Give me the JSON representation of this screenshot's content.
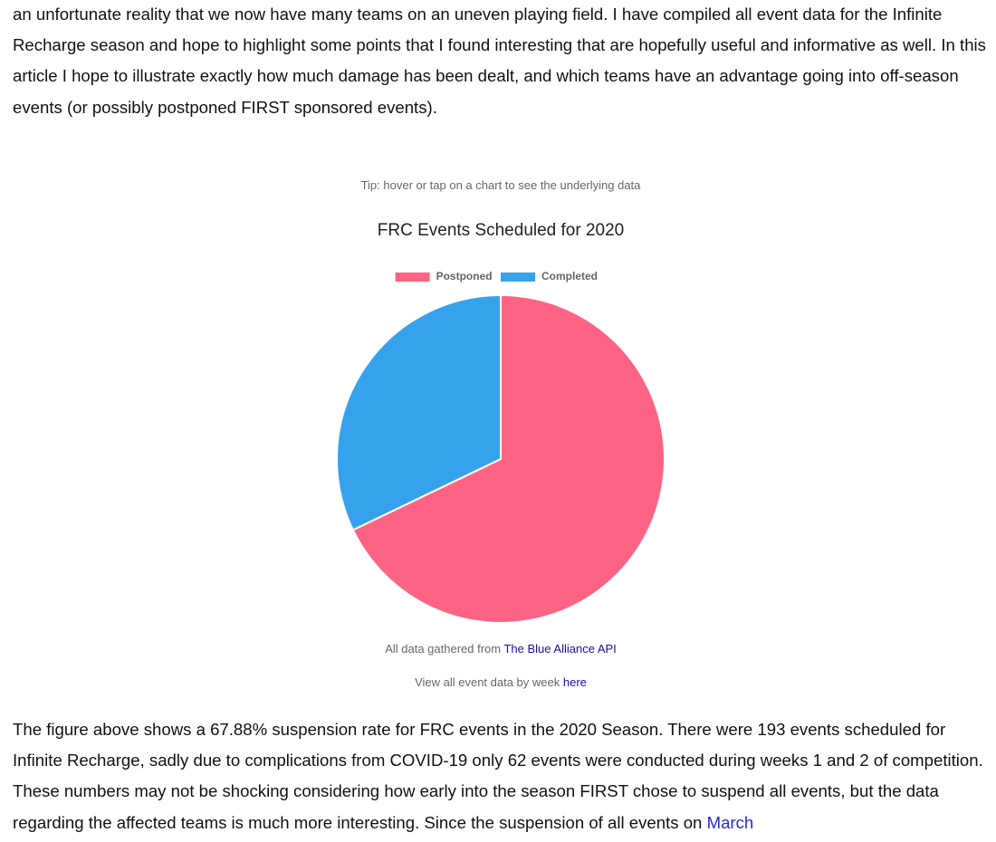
{
  "paragraphs": [
    {
      "text": "an unfortunate reality that we now have many teams on an uneven playing field. I have compiled all event data for the Infinite Recharge season and hope to highlight some points that I found interesting that are hopefully useful and informative as well. In this article I hope to illustrate exactly how much damage has been dealt, and which teams have an advantage going into off-season events (or possibly postponed FIRST sponsored events)."
    },
    {
      "text": "The figure above shows a 67.88% suspension rate for FRC events in the 2020 Season. There were 193 events scheduled for Infinite Recharge, sadly due to complications from COVID-19 only 62 events were conducted during weeks 1 and 2 of competition. These numbers may not be shocking considering how early into the season FIRST chose to suspend all events, but the data regarding the affected teams is much more interesting. Since the suspension of all events on",
      "link": "March"
    }
  ],
  "tip": "Tip: hover or tap on a chart to see the underlying data",
  "chart_data": {
    "type": "pie",
    "title": "FRC Events Scheduled for 2020",
    "categories": [
      "Postponed",
      "Completed"
    ],
    "values": [
      131,
      62
    ],
    "colors": [
      "#ff6384",
      "#36a2eb"
    ],
    "legend": "top"
  },
  "source": {
    "text": "All data gathered from",
    "link": "The Blue Alliance API"
  },
  "more": {
    "text": "View all event data by week",
    "link": "here"
  }
}
